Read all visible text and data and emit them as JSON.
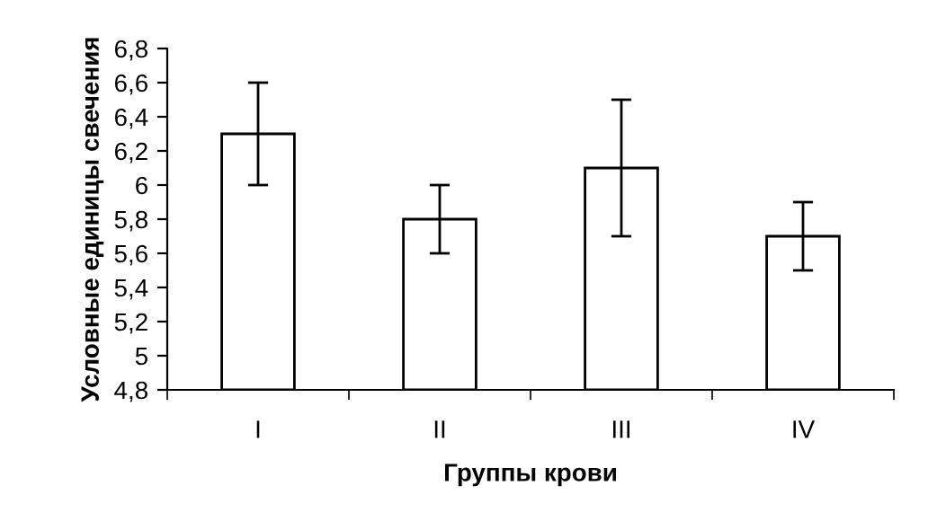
{
  "chart_data": {
    "type": "bar",
    "xlabel": "Группы крови",
    "ylabel": "Условные единицы свечения",
    "categories": [
      "I",
      "II",
      "III",
      "IV"
    ],
    "values": [
      6.3,
      5.8,
      6.1,
      5.7
    ],
    "errors": [
      [
        6.0,
        6.6
      ],
      [
        5.6,
        6.0
      ],
      [
        5.7,
        6.5
      ],
      [
        5.5,
        5.9
      ]
    ],
    "color": "#ffffff",
    "ylim": [
      4.8,
      6.8
    ],
    "yticks": [
      {
        "value": 4.8,
        "label": "4,8"
      },
      {
        "value": 5.0,
        "label": "5"
      },
      {
        "value": 5.2,
        "label": "5,2"
      },
      {
        "value": 5.4,
        "label": "5,4"
      },
      {
        "value": 5.6,
        "label": "5,6"
      },
      {
        "value": 5.8,
        "label": "5,8"
      },
      {
        "value": 6.0,
        "label": "6"
      },
      {
        "value": 6.2,
        "label": "6,2"
      },
      {
        "value": 6.4,
        "label": "6,4"
      },
      {
        "value": 6.6,
        "label": "6,6"
      },
      {
        "value": 6.8,
        "label": "6,8"
      }
    ],
    "grid": false
  }
}
